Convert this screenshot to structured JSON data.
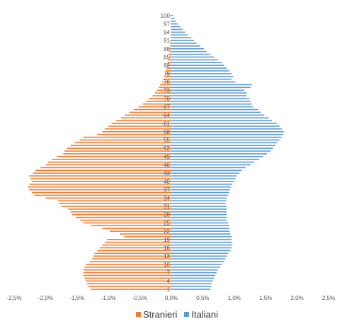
{
  "chart_data": {
    "type": "bar",
    "orientation": "horizontal",
    "layout": "population-pyramid",
    "title": "",
    "xlabel": "",
    "ylabel": "",
    "xlim": [
      -2.5,
      2.5
    ],
    "x_ticks": [
      "-2,5%",
      "-2,0%",
      "-1,5%",
      "-1,0%",
      "-0,5%",
      "0,0%",
      "0,5%",
      "1,0%",
      "1,5%",
      "2,0%",
      "2,5%"
    ],
    "x_tick_values": [
      -2.5,
      -2.0,
      -1.5,
      -1.0,
      -0.5,
      0.0,
      0.5,
      1.0,
      1.5,
      2.0,
      2.5
    ],
    "y_tick_labels": [
      "1",
      "4",
      "7",
      "10",
      "13",
      "16",
      "19",
      "22",
      "25",
      "28",
      "31",
      "34",
      "37",
      "40",
      "43",
      "46",
      "49",
      "52",
      "55",
      "58",
      "61",
      "64",
      "67",
      "70",
      "73",
      "76",
      "79",
      "82",
      "85",
      "88",
      "91",
      "94",
      "97",
      "100"
    ],
    "y_tick_values": [
      1,
      4,
      7,
      10,
      13,
      16,
      19,
      22,
      25,
      28,
      31,
      34,
      37,
      40,
      43,
      46,
      49,
      52,
      55,
      58,
      61,
      64,
      67,
      70,
      73,
      76,
      79,
      82,
      85,
      88,
      91,
      94,
      97,
      100
    ],
    "categories": [
      1,
      2,
      3,
      4,
      5,
      6,
      7,
      8,
      9,
      10,
      11,
      12,
      13,
      14,
      15,
      16,
      17,
      18,
      19,
      20,
      21,
      22,
      23,
      24,
      25,
      26,
      27,
      28,
      29,
      30,
      31,
      32,
      33,
      34,
      35,
      36,
      37,
      38,
      39,
      40,
      41,
      42,
      43,
      44,
      45,
      46,
      47,
      48,
      49,
      50,
      51,
      52,
      53,
      54,
      55,
      56,
      57,
      58,
      59,
      60,
      61,
      62,
      63,
      64,
      65,
      66,
      67,
      68,
      69,
      70,
      71,
      72,
      73,
      74,
      75,
      76,
      77,
      78,
      79,
      80,
      81,
      82,
      83,
      84,
      85,
      86,
      87,
      88,
      89,
      90,
      91,
      92,
      93,
      94,
      95,
      96,
      97,
      98,
      99,
      100
    ],
    "series": [
      {
        "name": "Stranieri",
        "color": "#ED7D31",
        "side": "left",
        "values": [
          1.28,
          1.32,
          1.34,
          1.36,
          1.38,
          1.4,
          1.4,
          1.4,
          1.38,
          1.36,
          1.3,
          1.26,
          1.24,
          1.22,
          1.18,
          1.14,
          1.1,
          1.06,
          1.02,
          0.75,
          0.82,
          0.98,
          1.1,
          1.28,
          1.4,
          1.45,
          1.52,
          1.58,
          1.6,
          1.64,
          1.75,
          1.78,
          1.8,
          2.0,
          2.18,
          2.22,
          2.26,
          2.28,
          2.26,
          2.22,
          2.24,
          2.26,
          2.2,
          2.16,
          2.08,
          2.0,
          1.96,
          1.9,
          1.82,
          1.72,
          1.7,
          1.66,
          1.6,
          1.54,
          1.46,
          1.4,
          1.18,
          1.1,
          1.06,
          1.0,
          0.95,
          0.88,
          0.8,
          0.74,
          0.67,
          0.6,
          0.52,
          0.45,
          0.4,
          0.36,
          0.3,
          0.26,
          0.23,
          0.2,
          0.18,
          0.15,
          0.13,
          0.11,
          0.1,
          0.09,
          0.08,
          0.07,
          0.06,
          0.05,
          0.04,
          0.04,
          0.03,
          0.03,
          0.02,
          0.02,
          0.02,
          0.01,
          0.01,
          0.01,
          0.01,
          0.01,
          0.01,
          0.01,
          0.01,
          0.01
        ]
      },
      {
        "name": "Italiani",
        "color": "#5B9BD5",
        "side": "right",
        "values": [
          0.62,
          0.63,
          0.64,
          0.66,
          0.68,
          0.7,
          0.72,
          0.74,
          0.78,
          0.8,
          0.84,
          0.86,
          0.88,
          0.9,
          0.94,
          0.96,
          0.97,
          0.97,
          0.96,
          0.96,
          0.94,
          0.93,
          0.92,
          0.92,
          0.9,
          0.88,
          0.88,
          0.88,
          0.88,
          0.88,
          0.88,
          0.86,
          0.87,
          0.88,
          0.9,
          0.92,
          0.93,
          0.95,
          0.97,
          1.0,
          1.02,
          1.04,
          1.08,
          1.12,
          1.18,
          1.26,
          1.32,
          1.4,
          1.46,
          1.52,
          1.58,
          1.62,
          1.66,
          1.68,
          1.72,
          1.75,
          1.78,
          1.79,
          1.76,
          1.72,
          1.68,
          1.6,
          1.55,
          1.48,
          1.42,
          1.38,
          1.3,
          1.28,
          1.26,
          1.24,
          1.2,
          1.2,
          1.16,
          1.26,
          1.28,
          1.02,
          0.96,
          0.98,
          0.96,
          0.92,
          0.88,
          0.84,
          0.8,
          0.74,
          0.68,
          0.62,
          0.56,
          0.52,
          0.46,
          0.4,
          0.36,
          0.32,
          0.26,
          0.22,
          0.18,
          0.14,
          0.1,
          0.07,
          0.05,
          0.03
        ]
      }
    ],
    "grid": {
      "x": false,
      "y": false
    },
    "legend": {
      "position": "bottom",
      "entries": [
        "Stranieri",
        "Italiani"
      ]
    }
  }
}
